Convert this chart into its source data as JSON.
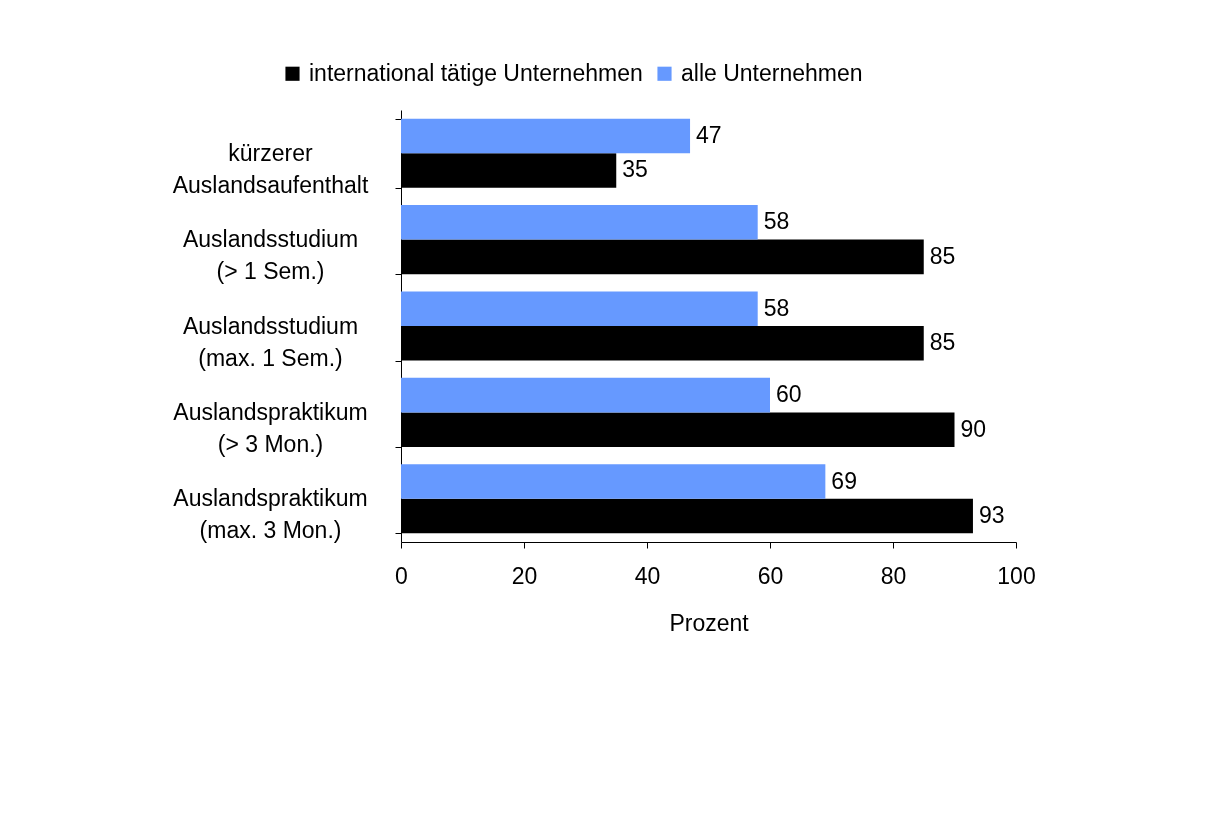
{
  "chart_data": {
    "type": "bar",
    "orientation": "horizontal",
    "categories": [
      "kürzerer\nAuslandsaufenthalt",
      "Auslandsstudium\n(> 1 Sem.)",
      "Auslandsstudium\n(max. 1 Sem.)",
      "Auslandspraktikum\n(> 3 Mon.)",
      "Auslandspraktikum\n(max. 3 Mon.)"
    ],
    "series": [
      {
        "name": "international tätige Unternehmen",
        "color": "#000000",
        "values": [
          35,
          85,
          85,
          90,
          93
        ]
      },
      {
        "name": "alle Unternehmen",
        "color": "#6699ff",
        "values": [
          47,
          58,
          58,
          60,
          69
        ]
      }
    ],
    "xlabel": "Prozent",
    "xlim": [
      0,
      100
    ],
    "xticks": [
      0,
      20,
      40,
      60,
      80,
      100
    ],
    "legend": "top",
    "data_labels": true
  }
}
